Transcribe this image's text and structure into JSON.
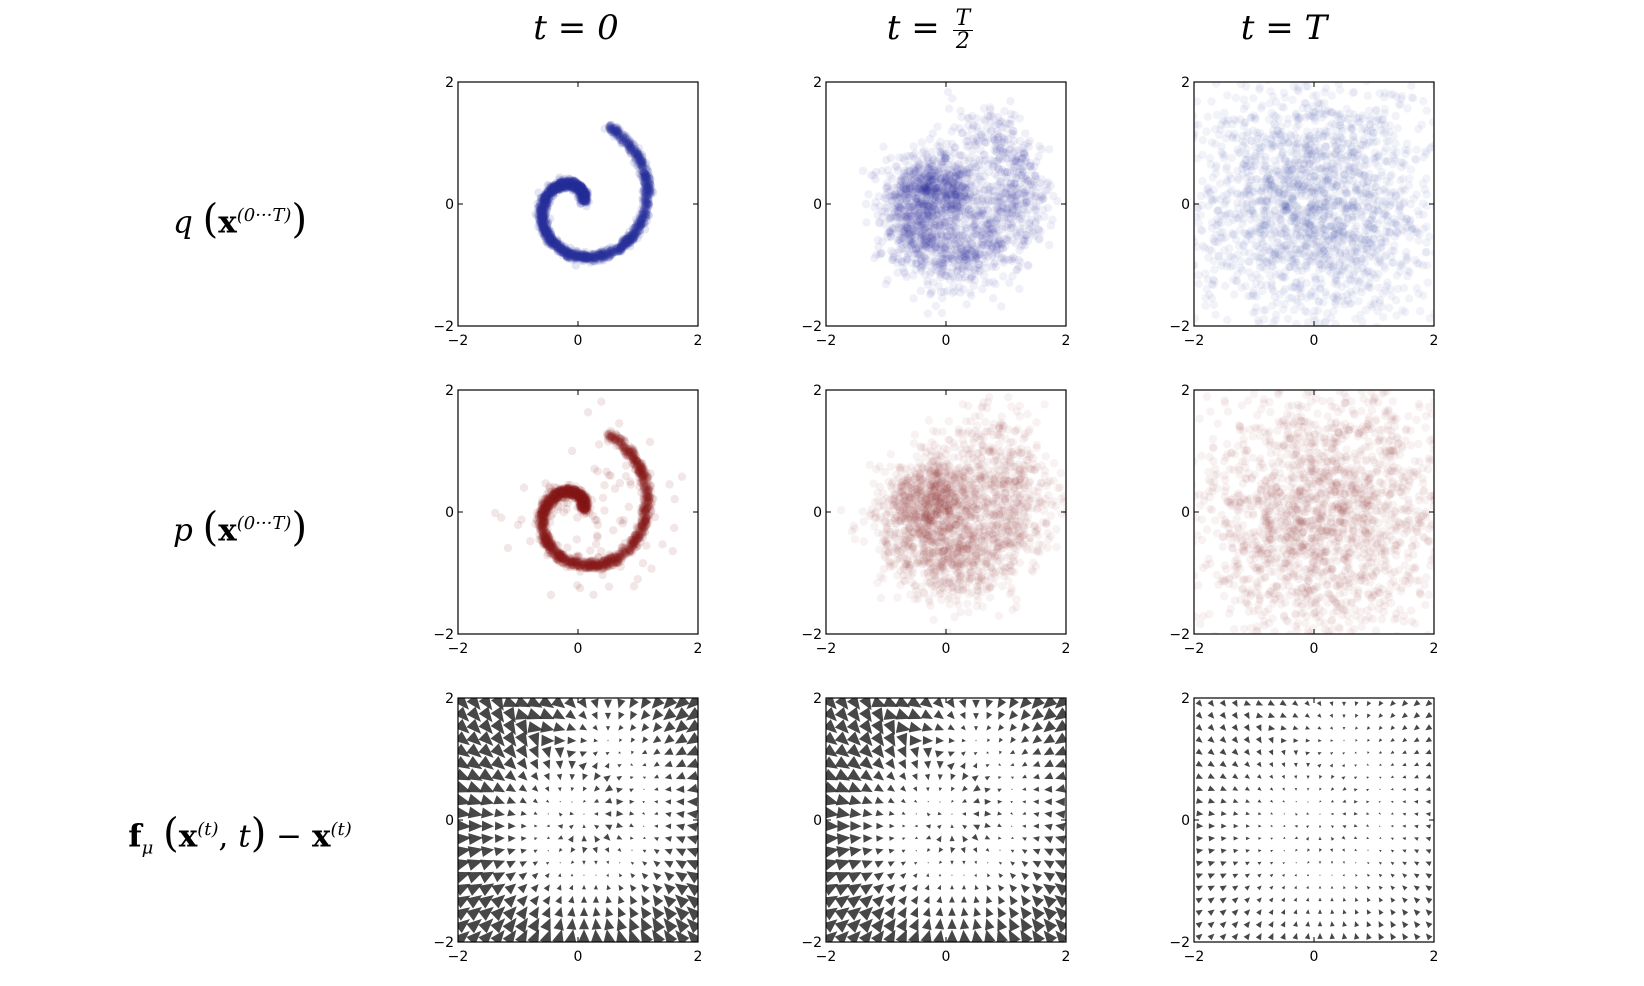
{
  "columns": [
    {
      "label": "t = 0",
      "name": "col-t-0"
    },
    {
      "label_lhs": "t =",
      "frac_num": "T",
      "frac_den": "2",
      "name": "col-t-half"
    },
    {
      "label": "t = T",
      "name": "col-t-T"
    }
  ],
  "rows": [
    {
      "name": "row-q",
      "label_fn": "q",
      "label_bold": "x",
      "label_sup": "(0···T)"
    },
    {
      "name": "row-p",
      "label_fn": "p",
      "label_bold": "x",
      "label_sup": "(0···T)"
    },
    {
      "name": "row-drift",
      "label_bold_f": "f",
      "label_sub": "μ",
      "label_bold": "x",
      "label_sup": "(t)",
      "label_t": "t",
      "label_minus": "−"
    }
  ],
  "colors": {
    "forward": "#2a2f9c",
    "reverse": "#8b1a1a",
    "arrows": "#333333"
  },
  "chart_data": [
    {
      "type": "scatter",
      "row": "q",
      "t": "0",
      "points_per_panel": 2000,
      "noise": 0.035,
      "alpha": 0.12,
      "color_key": "forward",
      "xlim": [
        -2,
        2
      ],
      "ylim": [
        -2,
        2
      ],
      "xticks": [
        "−2",
        "0",
        "2"
      ],
      "yticks": [
        "−2",
        "0",
        "2"
      ]
    },
    {
      "type": "scatter",
      "row": "q",
      "t": "T/2",
      "points_per_panel": 2000,
      "noise": 0.3,
      "alpha": 0.07,
      "color_key": "forward",
      "xlim": [
        -2,
        2
      ],
      "ylim": [
        -2,
        2
      ],
      "xticks": [
        "−2",
        "0",
        "2"
      ],
      "yticks": [
        "−2",
        "0",
        "2"
      ]
    },
    {
      "type": "scatter",
      "row": "q",
      "t": "T",
      "points_per_panel": 2000,
      "noise": 1.0,
      "alpha": 0.06,
      "color_key": "forward",
      "xlim": [
        -2,
        2
      ],
      "ylim": [
        -2,
        2
      ],
      "xticks": [
        "−2",
        "0",
        "2"
      ],
      "yticks": [
        "−2",
        "0",
        "2"
      ]
    },
    {
      "type": "scatter",
      "row": "p",
      "t": "0",
      "points_per_panel": 2000,
      "noise": 0.04,
      "alpha": 0.11,
      "color_key": "reverse",
      "outliers": 0.05,
      "xlim": [
        -2,
        2
      ],
      "ylim": [
        -2,
        2
      ],
      "xticks": [
        "−2",
        "0",
        "2"
      ],
      "yticks": [
        "−2",
        "0",
        "2"
      ]
    },
    {
      "type": "scatter",
      "row": "p",
      "t": "T/2",
      "points_per_panel": 2000,
      "noise": 0.38,
      "alpha": 0.06,
      "color_key": "reverse",
      "xlim": [
        -2,
        2
      ],
      "ylim": [
        -2,
        2
      ],
      "xticks": [
        "−2",
        "0",
        "2"
      ],
      "yticks": [
        "−2",
        "0",
        "2"
      ]
    },
    {
      "type": "scatter",
      "row": "p",
      "t": "T",
      "points_per_panel": 2000,
      "noise": 0.9,
      "alpha": 0.06,
      "color_key": "reverse",
      "xlim": [
        -2,
        2
      ],
      "ylim": [
        -2,
        2
      ],
      "xticks": [
        "−2",
        "0",
        "2"
      ],
      "yticks": [
        "−2",
        "0",
        "2"
      ]
    },
    {
      "type": "quiver",
      "row": "drift",
      "t": "0",
      "grid": 20,
      "strength": 1.0,
      "xlim": [
        -2,
        2
      ],
      "ylim": [
        -2,
        2
      ],
      "xticks": [
        "−2",
        "0",
        "2"
      ],
      "yticks": [
        "−2",
        "0",
        "2"
      ]
    },
    {
      "type": "quiver",
      "row": "drift",
      "t": "T/2",
      "grid": 20,
      "strength": 0.92,
      "xlim": [
        -2,
        2
      ],
      "ylim": [
        -2,
        2
      ],
      "xticks": [
        "−2",
        "0",
        "2"
      ],
      "yticks": [
        "−2",
        "0",
        "2"
      ]
    },
    {
      "type": "quiver",
      "row": "drift",
      "t": "T",
      "grid": 20,
      "strength": 0.35,
      "xlim": [
        -2,
        2
      ],
      "ylim": [
        -2,
        2
      ],
      "xticks": [
        "−2",
        "0",
        "2"
      ],
      "yticks": [
        "−2",
        "0",
        "2"
      ]
    }
  ]
}
